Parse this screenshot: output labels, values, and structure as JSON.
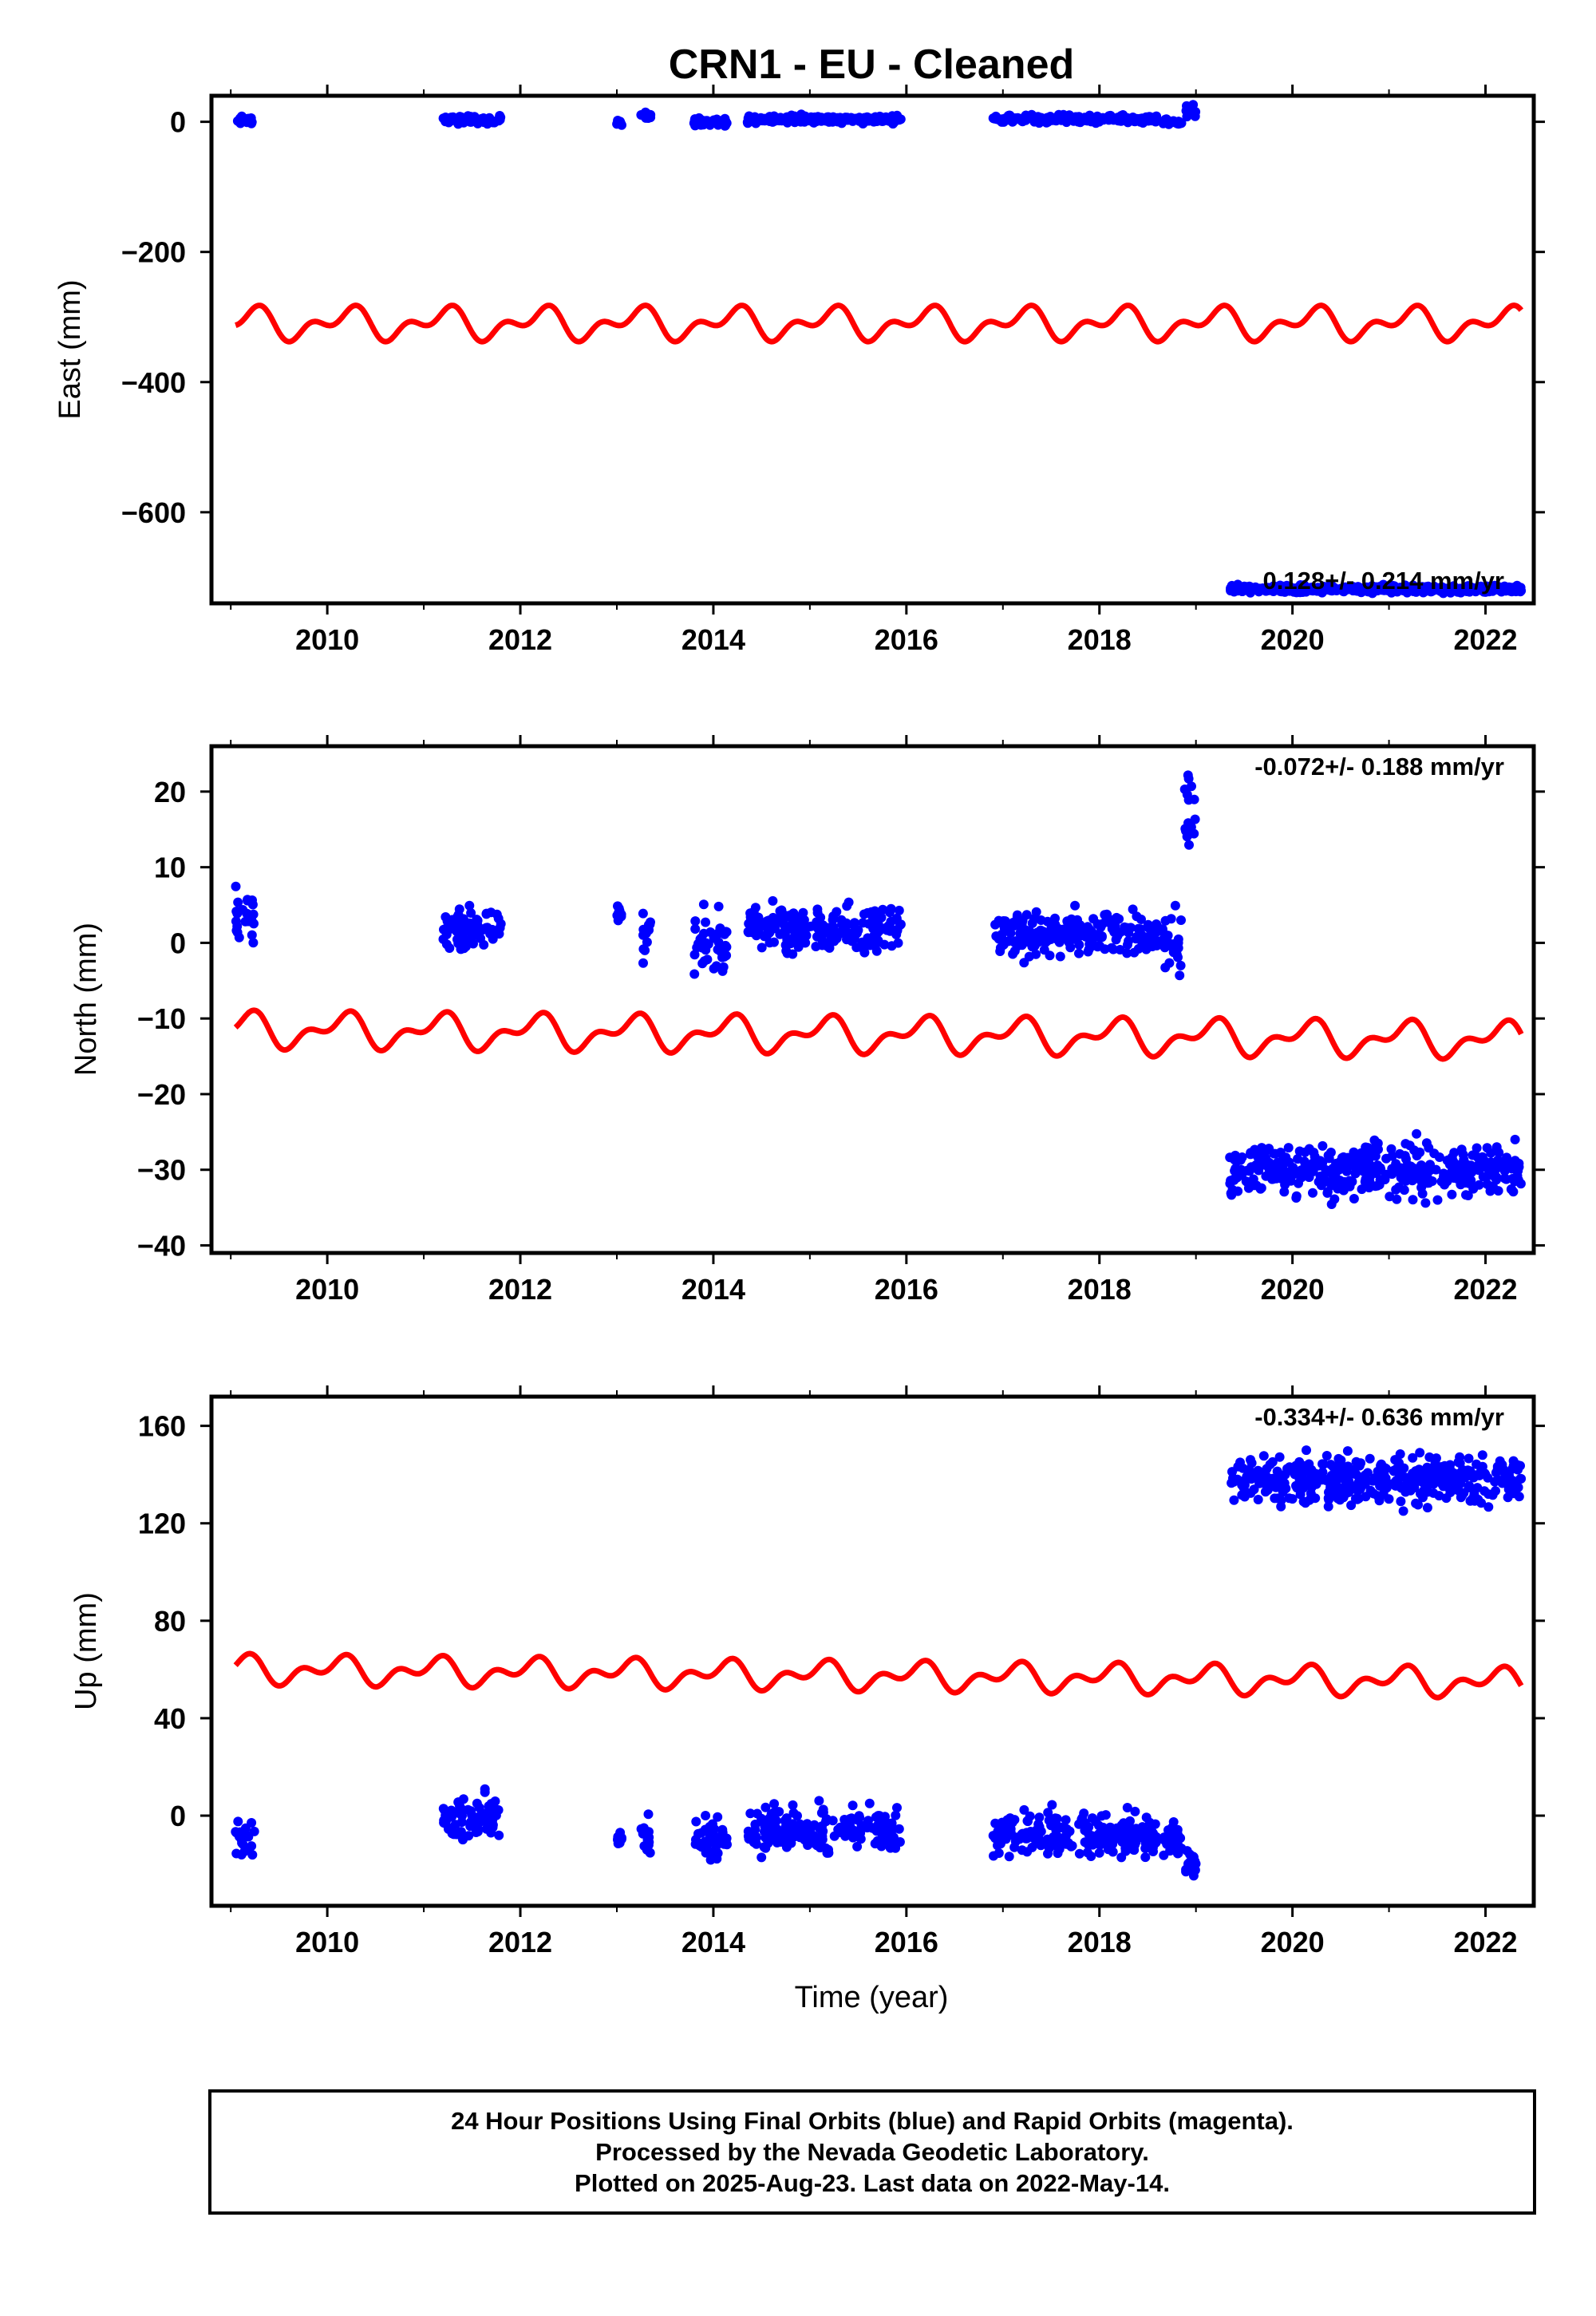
{
  "title": "CRN1  - EU - Cleaned",
  "xlabel": "Time (year)",
  "colors": {
    "final_orbits": "#0000ff",
    "rapid_orbits": "#ff00ff",
    "seasonal_model": "#ff0000",
    "frame": "#000000"
  },
  "footer": {
    "line1": "24 Hour Positions Using Final Orbits (blue) and Rapid Orbits (magenta).",
    "line2": "Processed by the Nevada Geodetic Laboratory.",
    "line3": "Plotted on 2025-Aug-23. Last data on 2022-May-14."
  },
  "chart_data": [
    {
      "type": "scatter",
      "component": "east",
      "ylabel": "East (mm)",
      "xlim": [
        2008.8,
        2022.5
      ],
      "ylim": [
        -740,
        40
      ],
      "xticks": [
        2010,
        2012,
        2014,
        2016,
        2018,
        2020,
        2022
      ],
      "yticks": [
        0,
        -200,
        -400,
        -600
      ],
      "rate_label": "0.128+/- 0.214 mm/yr",
      "grid": false,
      "segments": [
        {
          "x0": 2009.05,
          "x1": 2009.25,
          "mean": 2,
          "spread": 4
        },
        {
          "x0": 2011.2,
          "x1": 2011.8,
          "mean": 3,
          "spread": 4
        },
        {
          "x0": 2013.0,
          "x1": 2013.05,
          "mean": -2,
          "spread": 4
        },
        {
          "x0": 2013.25,
          "x1": 2013.35,
          "mean": 8,
          "spread": 4
        },
        {
          "x0": 2013.8,
          "x1": 2014.15,
          "mean": 0,
          "spread": 4
        },
        {
          "x0": 2014.35,
          "x1": 2015.95,
          "mean": 4,
          "spread": 4
        },
        {
          "x0": 2016.9,
          "x1": 2018.6,
          "mean": 4,
          "spread": 4
        },
        {
          "x0": 2018.65,
          "x1": 2018.85,
          "mean": 0,
          "spread": 3
        },
        {
          "x0": 2018.88,
          "x1": 2019.0,
          "mean": 18,
          "spread": 8
        },
        {
          "x0": 2019.35,
          "x1": 2022.37,
          "mean": -718,
          "spread": 4
        }
      ],
      "seasonal": {
        "x0": 2009.05,
        "x1": 2022.37,
        "offset": -310,
        "a1": 18,
        "a2": 14,
        "phase1": 0.05,
        "phase2": 0.3,
        "trend": 0
      }
    },
    {
      "type": "scatter",
      "component": "north",
      "ylabel": "North (mm)",
      "xlim": [
        2008.8,
        2022.5
      ],
      "ylim": [
        -41,
        26
      ],
      "xticks": [
        2010,
        2012,
        2014,
        2016,
        2018,
        2020,
        2022
      ],
      "yticks": [
        20,
        10,
        0,
        -10,
        -20,
        -30,
        -40
      ],
      "rate_label": "-0.072+/- 0.188 mm/yr",
      "grid": false,
      "segments": [
        {
          "x0": 2009.05,
          "x1": 2009.25,
          "mean": 3.5,
          "spread": 2.5
        },
        {
          "x0": 2011.2,
          "x1": 2011.8,
          "mean": 2,
          "spread": 2
        },
        {
          "x0": 2013.0,
          "x1": 2013.05,
          "mean": 3,
          "spread": 1.5
        },
        {
          "x0": 2013.25,
          "x1": 2013.35,
          "mean": 1,
          "spread": 2
        },
        {
          "x0": 2013.8,
          "x1": 2014.15,
          "mean": 0,
          "spread": 2.5
        },
        {
          "x0": 2014.35,
          "x1": 2015.95,
          "mean": 2,
          "spread": 2
        },
        {
          "x0": 2016.9,
          "x1": 2018.6,
          "mean": 1,
          "spread": 2
        },
        {
          "x0": 2018.65,
          "x1": 2018.85,
          "mean": 0,
          "spread": 2.5
        },
        {
          "x0": 2018.88,
          "x1": 2019.0,
          "mean": 17,
          "spread": 5
        },
        {
          "x0": 2019.35,
          "x1": 2022.37,
          "mean": -30,
          "spread": 2.5
        }
      ],
      "seasonal": {
        "x0": 2009.05,
        "x1": 2022.37,
        "offset": -11.5,
        "a1": 1.8,
        "a2": 1.2,
        "phase1": 0.1,
        "phase2": 0.35,
        "trend": -0.1
      }
    },
    {
      "type": "scatter",
      "component": "up",
      "ylabel": "Up (mm)",
      "xlim": [
        2008.8,
        2022.5
      ],
      "ylim": [
        -37,
        172
      ],
      "xticks": [
        2010,
        2012,
        2014,
        2016,
        2018,
        2020,
        2022
      ],
      "yticks": [
        160,
        120,
        80,
        40,
        0
      ],
      "rate_label": "-0.334+/- 0.636 mm/yr",
      "grid": false,
      "segments": [
        {
          "x0": 2009.05,
          "x1": 2009.25,
          "mean": -10,
          "spread": 5
        },
        {
          "x0": 2011.2,
          "x1": 2011.8,
          "mean": -1,
          "spread": 6
        },
        {
          "x0": 2013.0,
          "x1": 2013.05,
          "mean": -10,
          "spread": 3
        },
        {
          "x0": 2013.25,
          "x1": 2013.35,
          "mean": -8,
          "spread": 6
        },
        {
          "x0": 2013.8,
          "x1": 2014.15,
          "mean": -9,
          "spread": 6
        },
        {
          "x0": 2014.35,
          "x1": 2015.95,
          "mean": -6,
          "spread": 7
        },
        {
          "x0": 2016.9,
          "x1": 2018.6,
          "mean": -8,
          "spread": 6
        },
        {
          "x0": 2018.65,
          "x1": 2018.85,
          "mean": -10,
          "spread": 5
        },
        {
          "x0": 2018.88,
          "x1": 2019.0,
          "mean": -20,
          "spread": 5
        },
        {
          "x0": 2019.35,
          "x1": 2022.37,
          "mean": 138,
          "spread": 7
        }
      ],
      "seasonal": {
        "x0": 2009.05,
        "x1": 2022.37,
        "offset": 60,
        "a1": 4,
        "a2": 3.5,
        "phase1": 0.15,
        "phase2": 0.4,
        "trend": -0.4
      }
    }
  ]
}
